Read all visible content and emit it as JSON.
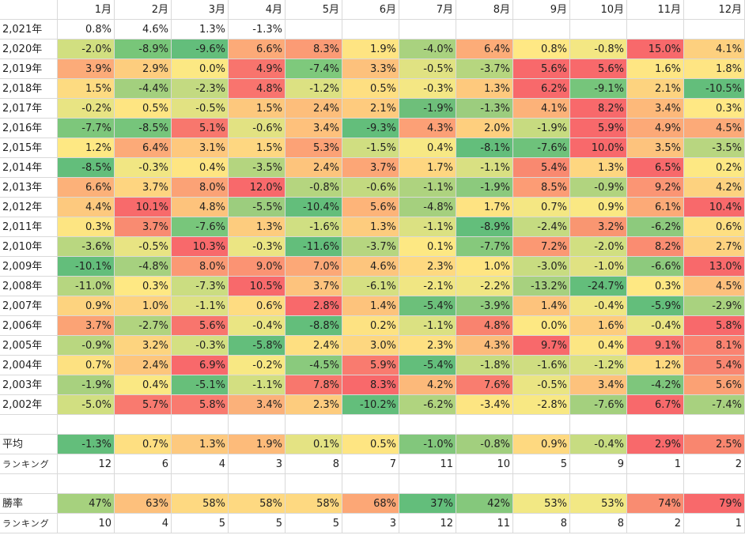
{
  "sheet": {
    "months": [
      "1月",
      "2月",
      "3月",
      "4月",
      "5月",
      "6月",
      "7月",
      "8月",
      "9月",
      "10月",
      "11月",
      "12月"
    ],
    "years": [
      {
        "label": "2,021年",
        "values": [
          "0.8%",
          "4.6%",
          "1.3%",
          "-1.3%",
          "",
          "",
          "",
          "",
          "",
          "",
          "",
          ""
        ],
        "colors": [
          "#ffffff",
          "#ffffff",
          "#ffffff",
          "#ffffff",
          "#ffffff",
          "#ffffff",
          "#ffffff",
          "#ffffff",
          "#ffffff",
          "#ffffff",
          "#ffffff",
          "#ffffff"
        ]
      },
      {
        "label": "2,020年",
        "values": [
          "-2.0%",
          "-8.9%",
          "-9.6%",
          "6.6%",
          "8.3%",
          "1.9%",
          "-4.0%",
          "6.4%",
          "0.8%",
          "-0.8%",
          "15.0%",
          "4.1%"
        ],
        "colors": [
          "#d1df80",
          "#78c679",
          "#63be7b",
          "#fcaa78",
          "#fb9b75",
          "#fee482",
          "#a9d27f",
          "#fcac78",
          "#ffe884",
          "#f3e783",
          "#f8696b",
          "#fdd07f"
        ]
      },
      {
        "label": "2,019年",
        "values": [
          "3.9%",
          "2.9%",
          "0.0%",
          "4.9%",
          "-7.4%",
          "3.3%",
          "-0.5%",
          "-3.7%",
          "5.6%",
          "5.6%",
          "1.6%",
          "1.8%"
        ],
        "colors": [
          "#fcab79",
          "#fdcd7e",
          "#fce883",
          "#f8746d",
          "#7ec97c",
          "#fdc17c",
          "#e0e282",
          "#b6d67f",
          "#f8696b",
          "#f8696b",
          "#fee683",
          "#fee583"
        ]
      },
      {
        "label": "2,018年",
        "values": [
          "1.5%",
          "-4.4%",
          "-2.3%",
          "4.8%",
          "-1.2%",
          "0.5%",
          "-0.3%",
          "1.3%",
          "6.2%",
          "-9.1%",
          "2.1%",
          "-10.5%"
        ],
        "colors": [
          "#fddb81",
          "#a3d07e",
          "#c3da81",
          "#f9746e",
          "#dce182",
          "#fedf81",
          "#f4e784",
          "#fec97d",
          "#f8696b",
          "#76c57b",
          "#fdd37f",
          "#63be7b"
        ]
      },
      {
        "label": "2,017年",
        "values": [
          "-0.2%",
          "0.5%",
          "-0.5%",
          "1.5%",
          "2.4%",
          "2.1%",
          "-1.9%",
          "-1.3%",
          "4.1%",
          "8.2%",
          "3.4%",
          "0.3%"
        ],
        "colors": [
          "#e8e483",
          "#fee582",
          "#e2e282",
          "#fdc87d",
          "#fdbe7b",
          "#fecb7e",
          "#6ebf7a",
          "#9ccd7e",
          "#fcb279",
          "#f8696b",
          "#fdb97a",
          "#ffe884"
        ]
      },
      {
        "label": "2,016年",
        "values": [
          "-7.7%",
          "-8.5%",
          "5.1%",
          "-0.6%",
          "3.4%",
          "-9.3%",
          "4.3%",
          "2.0%",
          "-1.9%",
          "5.9%",
          "4.9%",
          "4.5%"
        ],
        "colors": [
          "#7dc77b",
          "#76c57b",
          "#f8776d",
          "#e2e282",
          "#fec17c",
          "#63be7b",
          "#fca076",
          "#fecf7e",
          "#c7db80",
          "#f8696b",
          "#fca977",
          "#fcaa78"
        ]
      },
      {
        "label": "2,015年",
        "values": [
          "1.2%",
          "6.4%",
          "3.1%",
          "1.5%",
          "5.3%",
          "-1.5%",
          "0.4%",
          "-8.1%",
          "-7.6%",
          "10.0%",
          "3.5%",
          "-3.5%"
        ],
        "colors": [
          "#fee883",
          "#fcaa78",
          "#fec87d",
          "#fed781",
          "#fca276",
          "#d0de81",
          "#f7e884",
          "#63be7b",
          "#6ec27b",
          "#f8696b",
          "#fdc37d",
          "#b8d680"
        ]
      },
      {
        "label": "2,014年",
        "values": [
          "-8.5%",
          "-0.3%",
          "0.4%",
          "-3.5%",
          "2.4%",
          "3.7%",
          "1.7%",
          "-1.1%",
          "5.4%",
          "1.3%",
          "6.5%",
          "0.2%"
        ],
        "colors": [
          "#63be7b",
          "#f1e683",
          "#fee582",
          "#b4d57f",
          "#fdc47c",
          "#fca676",
          "#fed680",
          "#d9e082",
          "#f98970",
          "#fed680",
          "#f8696b",
          "#fde883"
        ]
      },
      {
        "label": "2,013年",
        "values": [
          "6.6%",
          "3.7%",
          "8.0%",
          "12.0%",
          "-0.8%",
          "-0.6%",
          "-1.1%",
          "-1.9%",
          "8.5%",
          "-0.9%",
          "9.2%",
          "4.2%"
        ],
        "colors": [
          "#fcb179",
          "#fed580",
          "#fba276",
          "#f8696b",
          "#b5d57f",
          "#c3da80",
          "#aed37f",
          "#8cca7d",
          "#fc9c75",
          "#b1d47f",
          "#fb9574",
          "#fdd27f"
        ]
      },
      {
        "label": "2,012年",
        "values": [
          "4.4%",
          "10.1%",
          "4.8%",
          "-5.5%",
          "-10.4%",
          "5.6%",
          "-4.8%",
          "1.7%",
          "0.7%",
          "0.9%",
          "6.1%",
          "10.4%"
        ],
        "colors": [
          "#fdc97e",
          "#f86a6b",
          "#fdc37c",
          "#9ccd7e",
          "#63be7b",
          "#fdb479",
          "#a5d07e",
          "#fee382",
          "#f4e783",
          "#fae883",
          "#fcaa77",
          "#f8696b"
        ]
      },
      {
        "label": "2,011年",
        "values": [
          "0.3%",
          "3.7%",
          "-7.6%",
          "1.3%",
          "-1.6%",
          "1.3%",
          "-1.1%",
          "-8.9%",
          "-2.4%",
          "3.2%",
          "-6.2%",
          "0.6%"
        ],
        "colors": [
          "#fde582",
          "#f98b71",
          "#78c67b",
          "#fdcc7e",
          "#d0df82",
          "#fdcc7e",
          "#dbe182",
          "#63be7b",
          "#c5db81",
          "#f99671",
          "#8dca7d",
          "#fedf82"
        ]
      },
      {
        "label": "2,010年",
        "values": [
          "-3.6%",
          "-0.5%",
          "10.3%",
          "-0.3%",
          "-11.6%",
          "-3.7%",
          "0.1%",
          "-7.7%",
          "7.2%",
          "-2.0%",
          "8.2%",
          "2.7%"
        ],
        "colors": [
          "#b9d780",
          "#e8e483",
          "#f8696b",
          "#ebe583",
          "#63be7b",
          "#b6d680",
          "#fde883",
          "#86c97c",
          "#fb9873",
          "#d1df81",
          "#fa8c71",
          "#fdd27f"
        ]
      },
      {
        "label": "2,009年",
        "values": [
          "-10.1%",
          "-4.8%",
          "8.0%",
          "9.0%",
          "7.0%",
          "4.6%",
          "2.3%",
          "1.0%",
          "-3.0%",
          "-1.0%",
          "-6.6%",
          "13.0%"
        ],
        "colors": [
          "#63be7b",
          "#a6d17f",
          "#fb9974",
          "#fb9373",
          "#fca877",
          "#fdc57d",
          "#fed980",
          "#fee582",
          "#c8dc81",
          "#e0e282",
          "#8dca7d",
          "#f8696b"
        ]
      },
      {
        "label": "2,008年",
        "values": [
          "-11.0%",
          "0.3%",
          "-7.3%",
          "10.5%",
          "3.7%",
          "-6.1%",
          "-2.1%",
          "-2.2%",
          "-13.2%",
          "-24.7%",
          "0.3%",
          "4.5%"
        ],
        "colors": [
          "#b6d680",
          "#fee883",
          "#cbdd81",
          "#f8696b",
          "#fdc37d",
          "#d5e082",
          "#f0e683",
          "#f0e683",
          "#a7d17f",
          "#63be7b",
          "#fee883",
          "#fdc07c"
        ]
      },
      {
        "label": "2,007年",
        "values": [
          "0.9%",
          "1.0%",
          "-1.1%",
          "0.6%",
          "2.8%",
          "1.4%",
          "-5.4%",
          "-3.9%",
          "1.4%",
          "-0.4%",
          "-5.9%",
          "-2.9%"
        ],
        "colors": [
          "#fdd37f",
          "#fdd27f",
          "#dde182",
          "#fedc81",
          "#f8696b",
          "#fdc37c",
          "#6cc07a",
          "#90cb7d",
          "#fdc37c",
          "#f0e683",
          "#63be7b",
          "#a9d27f"
        ]
      },
      {
        "label": "2,006年",
        "values": [
          "3.7%",
          "-2.7%",
          "5.6%",
          "-0.4%",
          "-8.8%",
          "0.2%",
          "-1.1%",
          "4.8%",
          "0.0%",
          "1.6%",
          "-0.4%",
          "5.8%"
        ],
        "colors": [
          "#fba375",
          "#b1d47f",
          "#f8756d",
          "#eae583",
          "#63be7b",
          "#fde282",
          "#dbe182",
          "#f9836f",
          "#fde883",
          "#fdcd7e",
          "#eae583",
          "#f8696b"
        ]
      },
      {
        "label": "2,005年",
        "values": [
          "-0.9%",
          "3.2%",
          "-0.3%",
          "-5.8%",
          "2.4%",
          "3.0%",
          "2.3%",
          "4.3%",
          "9.7%",
          "0.4%",
          "9.1%",
          "8.1%"
        ],
        "colors": [
          "#b9d780",
          "#fdd47f",
          "#d4e082",
          "#63be7b",
          "#fedf81",
          "#fdd780",
          "#fee082",
          "#fcbd7b",
          "#f8696b",
          "#fce683",
          "#f97470",
          "#fa8371"
        ]
      },
      {
        "label": "2,004年",
        "values": [
          "0.7%",
          "2.4%",
          "6.9%",
          "-0.2%",
          "-4.5%",
          "5.9%",
          "-5.4%",
          "-1.8%",
          "-1.6%",
          "-1.2%",
          "1.2%",
          "5.4%"
        ],
        "colors": [
          "#fde181",
          "#fdc67c",
          "#f8696b",
          "#f8e883",
          "#8aca7d",
          "#f97b6f",
          "#63be7b",
          "#c7db80",
          "#cfdd81",
          "#dbe182",
          "#fed980",
          "#f98671"
        ]
      },
      {
        "label": "2,003年",
        "values": [
          "-1.9%",
          "0.4%",
          "-5.1%",
          "-1.1%",
          "7.8%",
          "8.3%",
          "4.2%",
          "7.6%",
          "-0.5%",
          "3.4%",
          "-4.2%",
          "5.6%"
        ],
        "colors": [
          "#a8d17f",
          "#fae883",
          "#67bf7a",
          "#d3df81",
          "#f8776d",
          "#f8696b",
          "#fcb97a",
          "#f97d6f",
          "#eae583",
          "#fdc27c",
          "#7ec67c",
          "#fba174"
        ]
      },
      {
        "label": "2,002年",
        "values": [
          "-5.0%",
          "5.7%",
          "5.8%",
          "3.4%",
          "2.3%",
          "-10.2%",
          "-6.2%",
          "-3.4%",
          "-2.8%",
          "-7.6%",
          "6.7%",
          "-7.4%"
        ],
        "colors": [
          "#d1df81",
          "#f97a6f",
          "#f97a6f",
          "#fbb17a",
          "#fdcc7e",
          "#63be7b",
          "#b0d47f",
          "#fde582",
          "#f8e883",
          "#a4d07e",
          "#f8696b",
          "#a8d17f"
        ]
      }
    ],
    "average": {
      "label": "平均",
      "values": [
        "-1.3%",
        "0.7%",
        "1.3%",
        "1.9%",
        "0.1%",
        "0.5%",
        "-1.0%",
        "-0.8%",
        "0.9%",
        "-0.4%",
        "2.9%",
        "2.5%"
      ],
      "colors": [
        "#63be7b",
        "#fedf81",
        "#fdc97e",
        "#fdbb7a",
        "#e4e383",
        "#fee582",
        "#82c77c",
        "#a2cf7e",
        "#fed980",
        "#c7dc81",
        "#f8696b",
        "#f9866f"
      ]
    },
    "ranking1": {
      "label": "ランキング",
      "values": [
        "12",
        "6",
        "4",
        "3",
        "8",
        "7",
        "11",
        "10",
        "5",
        "9",
        "1",
        "2"
      ]
    },
    "winrate": {
      "label": "勝率",
      "values": [
        "47%",
        "63%",
        "58%",
        "58%",
        "58%",
        "68%",
        "37%",
        "42%",
        "53%",
        "53%",
        "74%",
        "79%"
      ],
      "colors": [
        "#a6d17e",
        "#fdc07c",
        "#fed981",
        "#fed981",
        "#fed981",
        "#fca776",
        "#63be7b",
        "#85c87c",
        "#f2e884",
        "#f2e884",
        "#f98c71",
        "#f8696b"
      ]
    },
    "ranking2": {
      "label": "ランキング",
      "values": [
        "10",
        "4",
        "5",
        "5",
        "5",
        "3",
        "12",
        "11",
        "8",
        "8",
        "2",
        "1"
      ]
    }
  }
}
